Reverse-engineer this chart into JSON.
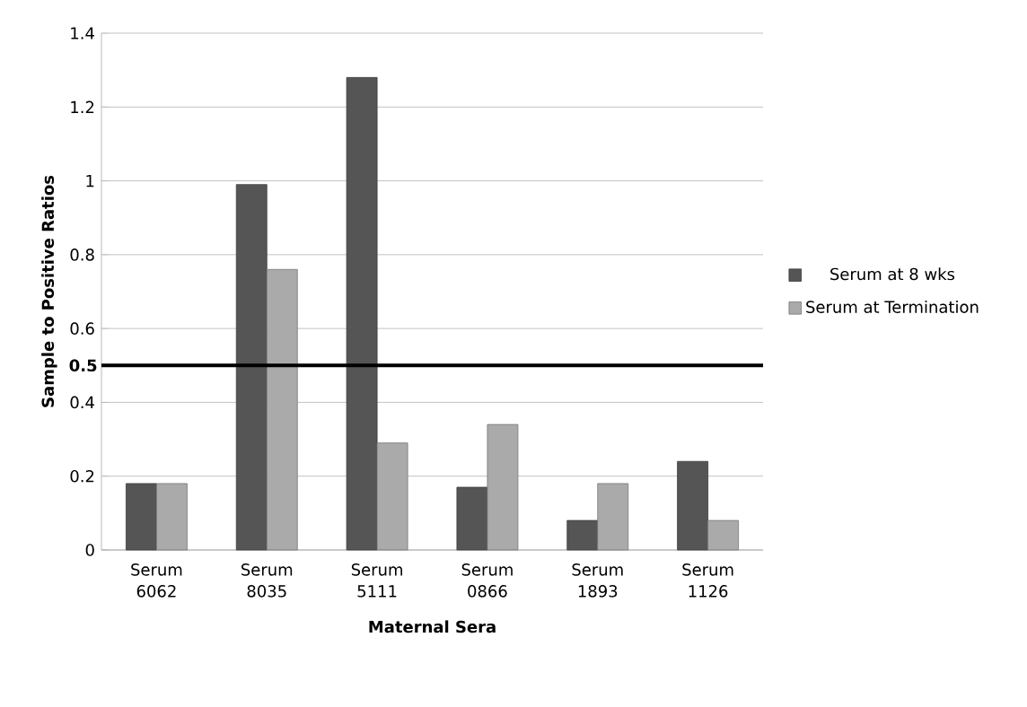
{
  "chart_data": {
    "type": "bar",
    "xlabel": "Maternal Sera",
    "ylabel": "Sample to Positive Ratios",
    "categories": [
      "Serum 6062",
      "Serum 8035",
      "Serum 5111",
      "Serum 0866",
      "Serum 1893",
      "Serum 1126"
    ],
    "series": [
      {
        "name": "Serum at 8 wks",
        "color": "#555555",
        "values": [
          0.18,
          0.99,
          1.28,
          0.17,
          0.08,
          0.24
        ]
      },
      {
        "name": "Serum at Termination",
        "color": "#aaaaaa",
        "values": [
          0.18,
          0.76,
          0.29,
          0.34,
          0.18,
          0.08
        ]
      }
    ],
    "ylim": [
      0,
      1.4
    ],
    "yticks": [
      0,
      0.2,
      0.4,
      0.6,
      0.8,
      1,
      1.2,
      1.4
    ],
    "ref_lines": [
      {
        "axis": "y",
        "value": 0.5,
        "label": "0.5",
        "color": "#000000"
      }
    ],
    "grid": "y",
    "legend": "right"
  }
}
